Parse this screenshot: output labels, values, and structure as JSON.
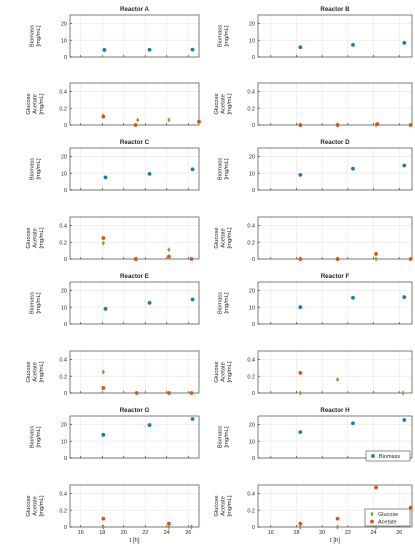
{
  "colors": {
    "biomass": "#1f77b4",
    "glucose": "#77ac30",
    "acetate": "#d95319",
    "axis": "#262626",
    "grid": "#e6e6e6"
  },
  "legend_biomass": [
    "Biomass"
  ],
  "legend_glucose_acetate": [
    "Glucose",
    "Acetate"
  ],
  "xlabel": "t [h]",
  "chart_data": [
    {
      "reactor": "Reactor A",
      "type": "scatter",
      "title": "Reactor A",
      "biomass": {
        "ylabel": [
          "Biomass",
          "[mg/mL]"
        ],
        "ylim": [
          0,
          25
        ],
        "yticks": [
          0,
          10,
          20
        ],
        "xlim": [
          15,
          27
        ],
        "xticks": [
          16,
          18,
          20,
          22,
          24,
          26
        ],
        "series": [
          {
            "name": "Biomass",
            "x": [
              18.2,
              22.4,
              26.4
            ],
            "y": [
              4.2,
              4.3,
              4.4
            ]
          }
        ]
      },
      "substrate": {
        "ylabel": [
          "Glucose",
          "Acetate",
          "[mg/mL]"
        ],
        "ylim": [
          0,
          0.5
        ],
        "yticks": [
          0,
          0.2,
          0.4
        ],
        "xlim": [
          15,
          27
        ],
        "xticks": [
          16,
          18,
          20,
          22,
          24,
          26
        ],
        "series": [
          {
            "name": "Glucose",
            "x": [
              18.1,
              21.3,
              24.2
            ],
            "y": [
              0.11,
              0.06,
              0.06
            ]
          },
          {
            "name": "Acetate",
            "x": [
              18.1,
              21.1,
              27.0
            ],
            "y": [
              0.1,
              0.0,
              0.04
            ]
          }
        ]
      }
    },
    {
      "reactor": "Reactor B",
      "type": "scatter",
      "title": "Reactor B",
      "biomass": {
        "ylabel": [
          "Biomass",
          "[mg/mL]"
        ],
        "ylim": [
          0,
          25
        ],
        "yticks": [
          0,
          10,
          20
        ],
        "xlim": [
          15,
          27
        ],
        "xticks": [
          16,
          18,
          20,
          22,
          24,
          26
        ],
        "series": [
          {
            "name": "Biomass",
            "x": [
              18.3,
              22.4,
              26.4
            ],
            "y": [
              5.8,
              7.2,
              8.4
            ]
          }
        ]
      },
      "substrate": {
        "ylabel": [
          "Glucose",
          "Acetate",
          "[mg/mL]"
        ],
        "ylim": [
          0,
          0.5
        ],
        "yticks": [
          0,
          0.2,
          0.4
        ],
        "xlim": [
          15,
          27
        ],
        "xticks": [
          16,
          18,
          20,
          22,
          24,
          26
        ],
        "series": [
          {
            "name": "Glucose",
            "x": [
              18.3,
              21.2,
              24.2
            ],
            "y": [
              0.0,
              0.0,
              0.0
            ]
          },
          {
            "name": "Acetate",
            "x": [
              18.3,
              21.2,
              24.3,
              26.9
            ],
            "y": [
              0.0,
              0.0,
              0.01,
              0.0
            ]
          }
        ]
      }
    },
    {
      "reactor": "Reactor C",
      "type": "scatter",
      "title": "Reactor C",
      "biomass": {
        "ylabel": [
          "Biomass",
          "[mg/mL]"
        ],
        "ylim": [
          0,
          25
        ],
        "yticks": [
          0,
          10,
          20
        ],
        "xlim": [
          15,
          27
        ],
        "xticks": [
          16,
          18,
          20,
          22,
          24,
          26
        ],
        "series": [
          {
            "name": "Biomass",
            "x": [
              18.3,
              22.4,
              26.4
            ],
            "y": [
              7.5,
              9.6,
              12.3
            ]
          }
        ]
      },
      "substrate": {
        "ylabel": [
          "Glucose",
          "Acetate",
          "[mg/mL]"
        ],
        "ylim": [
          0,
          0.5
        ],
        "yticks": [
          0,
          0.2,
          0.4
        ],
        "xlim": [
          15,
          27
        ],
        "xticks": [
          16,
          18,
          20,
          22,
          24,
          26
        ],
        "series": [
          {
            "name": "Glucose",
            "x": [
              18.1,
              21.2,
              24.2
            ],
            "y": [
              0.19,
              0.0,
              0.11
            ]
          },
          {
            "name": "Acetate",
            "x": [
              18.1,
              21.1,
              24.2,
              26.3
            ],
            "y": [
              0.25,
              0.0,
              0.03,
              0.0
            ]
          }
        ]
      }
    },
    {
      "reactor": "Reactor D",
      "type": "scatter",
      "title": "Reactor D",
      "biomass": {
        "ylabel": [
          "Biomass",
          "[mg/mL]"
        ],
        "ylim": [
          0,
          25
        ],
        "yticks": [
          0,
          10,
          20
        ],
        "xlim": [
          15,
          27
        ],
        "xticks": [
          16,
          18,
          20,
          22,
          24,
          26
        ],
        "series": [
          {
            "name": "Biomass",
            "x": [
              18.3,
              22.4,
              26.4
            ],
            "y": [
              9.0,
              12.7,
              14.6
            ]
          }
        ]
      },
      "substrate": {
        "ylabel": [
          "Glucose",
          "Acetate",
          "[mg/mL]"
        ],
        "ylim": [
          0,
          0.5
        ],
        "yticks": [
          0,
          0.2,
          0.4
        ],
        "xlim": [
          15,
          27
        ],
        "xticks": [
          16,
          18,
          20,
          22,
          24,
          26
        ],
        "series": [
          {
            "name": "Glucose",
            "x": [
              18.3,
              21.2,
              24.2
            ],
            "y": [
              0.0,
              0.0,
              0.0
            ]
          },
          {
            "name": "Acetate",
            "x": [
              18.3,
              21.2,
              24.2,
              26.9
            ],
            "y": [
              0.0,
              0.0,
              0.06,
              0.0
            ]
          }
        ]
      }
    },
    {
      "reactor": "Reactor E",
      "type": "scatter",
      "title": "Reactor E",
      "biomass": {
        "ylabel": [
          "Biomass",
          "[mg/mL]"
        ],
        "ylim": [
          0,
          25
        ],
        "yticks": [
          0,
          10,
          20
        ],
        "xlim": [
          15,
          27
        ],
        "xticks": [
          16,
          18,
          20,
          22,
          24,
          26
        ],
        "series": [
          {
            "name": "Biomass",
            "x": [
              18.3,
              22.4,
              26.4
            ],
            "y": [
              9.0,
              12.6,
              14.6
            ]
          }
        ]
      },
      "substrate": {
        "ylabel": [
          "Glucose",
          "Acetate",
          "[mg/mL]"
        ],
        "ylim": [
          0,
          0.5
        ],
        "yticks": [
          0,
          0.2,
          0.4
        ],
        "xlim": [
          15,
          27
        ],
        "xticks": [
          16,
          18,
          20,
          22,
          24,
          26
        ],
        "series": [
          {
            "name": "Glucose",
            "x": [
              18.1
            ],
            "y": [
              0.25
            ]
          },
          {
            "name": "Acetate",
            "x": [
              18.1,
              21.2,
              24.2,
              26.3
            ],
            "y": [
              0.06,
              0.0,
              0.0,
              0.0
            ]
          }
        ]
      }
    },
    {
      "reactor": "Reactor F",
      "type": "scatter",
      "title": "Reactor F",
      "biomass": {
        "ylabel": [
          "Biomass",
          "[mg/mL]"
        ],
        "ylim": [
          0,
          25
        ],
        "yticks": [
          0,
          10,
          20
        ],
        "xlim": [
          15,
          27
        ],
        "xticks": [
          16,
          18,
          20,
          22,
          24,
          26
        ],
        "series": [
          {
            "name": "Biomass",
            "x": [
              18.3,
              22.4,
              26.4
            ],
            "y": [
              10.0,
              15.6,
              16.0
            ]
          }
        ]
      },
      "substrate": {
        "ylabel": [
          "Glucose",
          "Acetate",
          "[mg/mL]"
        ],
        "ylim": [
          0,
          0.5
        ],
        "yticks": [
          0,
          0.2,
          0.4
        ],
        "xlim": [
          15,
          27
        ],
        "xticks": [
          16,
          18,
          20,
          22,
          24,
          26
        ],
        "series": [
          {
            "name": "Glucose",
            "x": [
              18.3,
              21.2,
              26.3
            ],
            "y": [
              0.0,
              0.16,
              0.0
            ]
          },
          {
            "name": "Acetate",
            "x": [
              18.3
            ],
            "y": [
              0.24
            ]
          }
        ]
      }
    },
    {
      "reactor": "Reactor G",
      "type": "scatter",
      "title": "Reactor G",
      "biomass": {
        "ylabel": [
          "Biomass",
          "[mg/mL]"
        ],
        "ylim": [
          0,
          25
        ],
        "yticks": [
          0,
          10,
          20
        ],
        "xlim": [
          15,
          27
        ],
        "xticks": [
          16,
          18,
          20,
          22,
          24,
          26
        ],
        "series": [
          {
            "name": "Biomass",
            "x": [
              18.1,
              22.4,
              26.4
            ],
            "y": [
              13.8,
              19.6,
              23.2
            ]
          }
        ]
      },
      "substrate": {
        "ylabel": [
          "Glucose",
          "Acetate",
          "[mg/mL]"
        ],
        "ylim": [
          0,
          0.5
        ],
        "yticks": [
          0,
          0.2,
          0.4
        ],
        "xlim": [
          15,
          27
        ],
        "xticks": [
          16,
          18,
          20,
          22,
          24,
          26
        ],
        "series": [
          {
            "name": "Glucose",
            "x": [
              18.1,
              24.2,
              26.3
            ],
            "y": [
              0.0,
              0.0,
              0.0
            ]
          },
          {
            "name": "Acetate",
            "x": [
              18.1,
              24.2
            ],
            "y": [
              0.1,
              0.04
            ]
          }
        ]
      }
    },
    {
      "reactor": "Reactor H",
      "type": "scatter",
      "title": "Reactor H",
      "biomass": {
        "ylabel": [
          "Biomass",
          "[mg/mL]"
        ],
        "ylim": [
          0,
          25
        ],
        "yticks": [
          0,
          10,
          20
        ],
        "xlim": [
          15,
          27
        ],
        "xticks": [
          16,
          18,
          20,
          22,
          24,
          26
        ],
        "series": [
          {
            "name": "Biomass",
            "x": [
              18.3,
              22.4,
              26.4
            ],
            "y": [
              15.4,
              20.7,
              22.6
            ]
          }
        ]
      },
      "substrate": {
        "ylabel": [
          "Glucose",
          "Acetate",
          "[mg/mL]"
        ],
        "ylim": [
          0,
          0.5
        ],
        "yticks": [
          0,
          0.2,
          0.4
        ],
        "xlim": [
          15,
          27
        ],
        "xticks": [
          16,
          18,
          20,
          22,
          24,
          26
        ],
        "series": [
          {
            "name": "Glucose",
            "x": [
              18.3,
              21.2,
              24.2
            ],
            "y": [
              0.0,
              0.0,
              0.0
            ]
          },
          {
            "name": "Acetate",
            "x": [
              18.3,
              21.2,
              24.2,
              26.9
            ],
            "y": [
              0.04,
              0.1,
              0.47,
              0.23
            ]
          }
        ]
      }
    }
  ]
}
